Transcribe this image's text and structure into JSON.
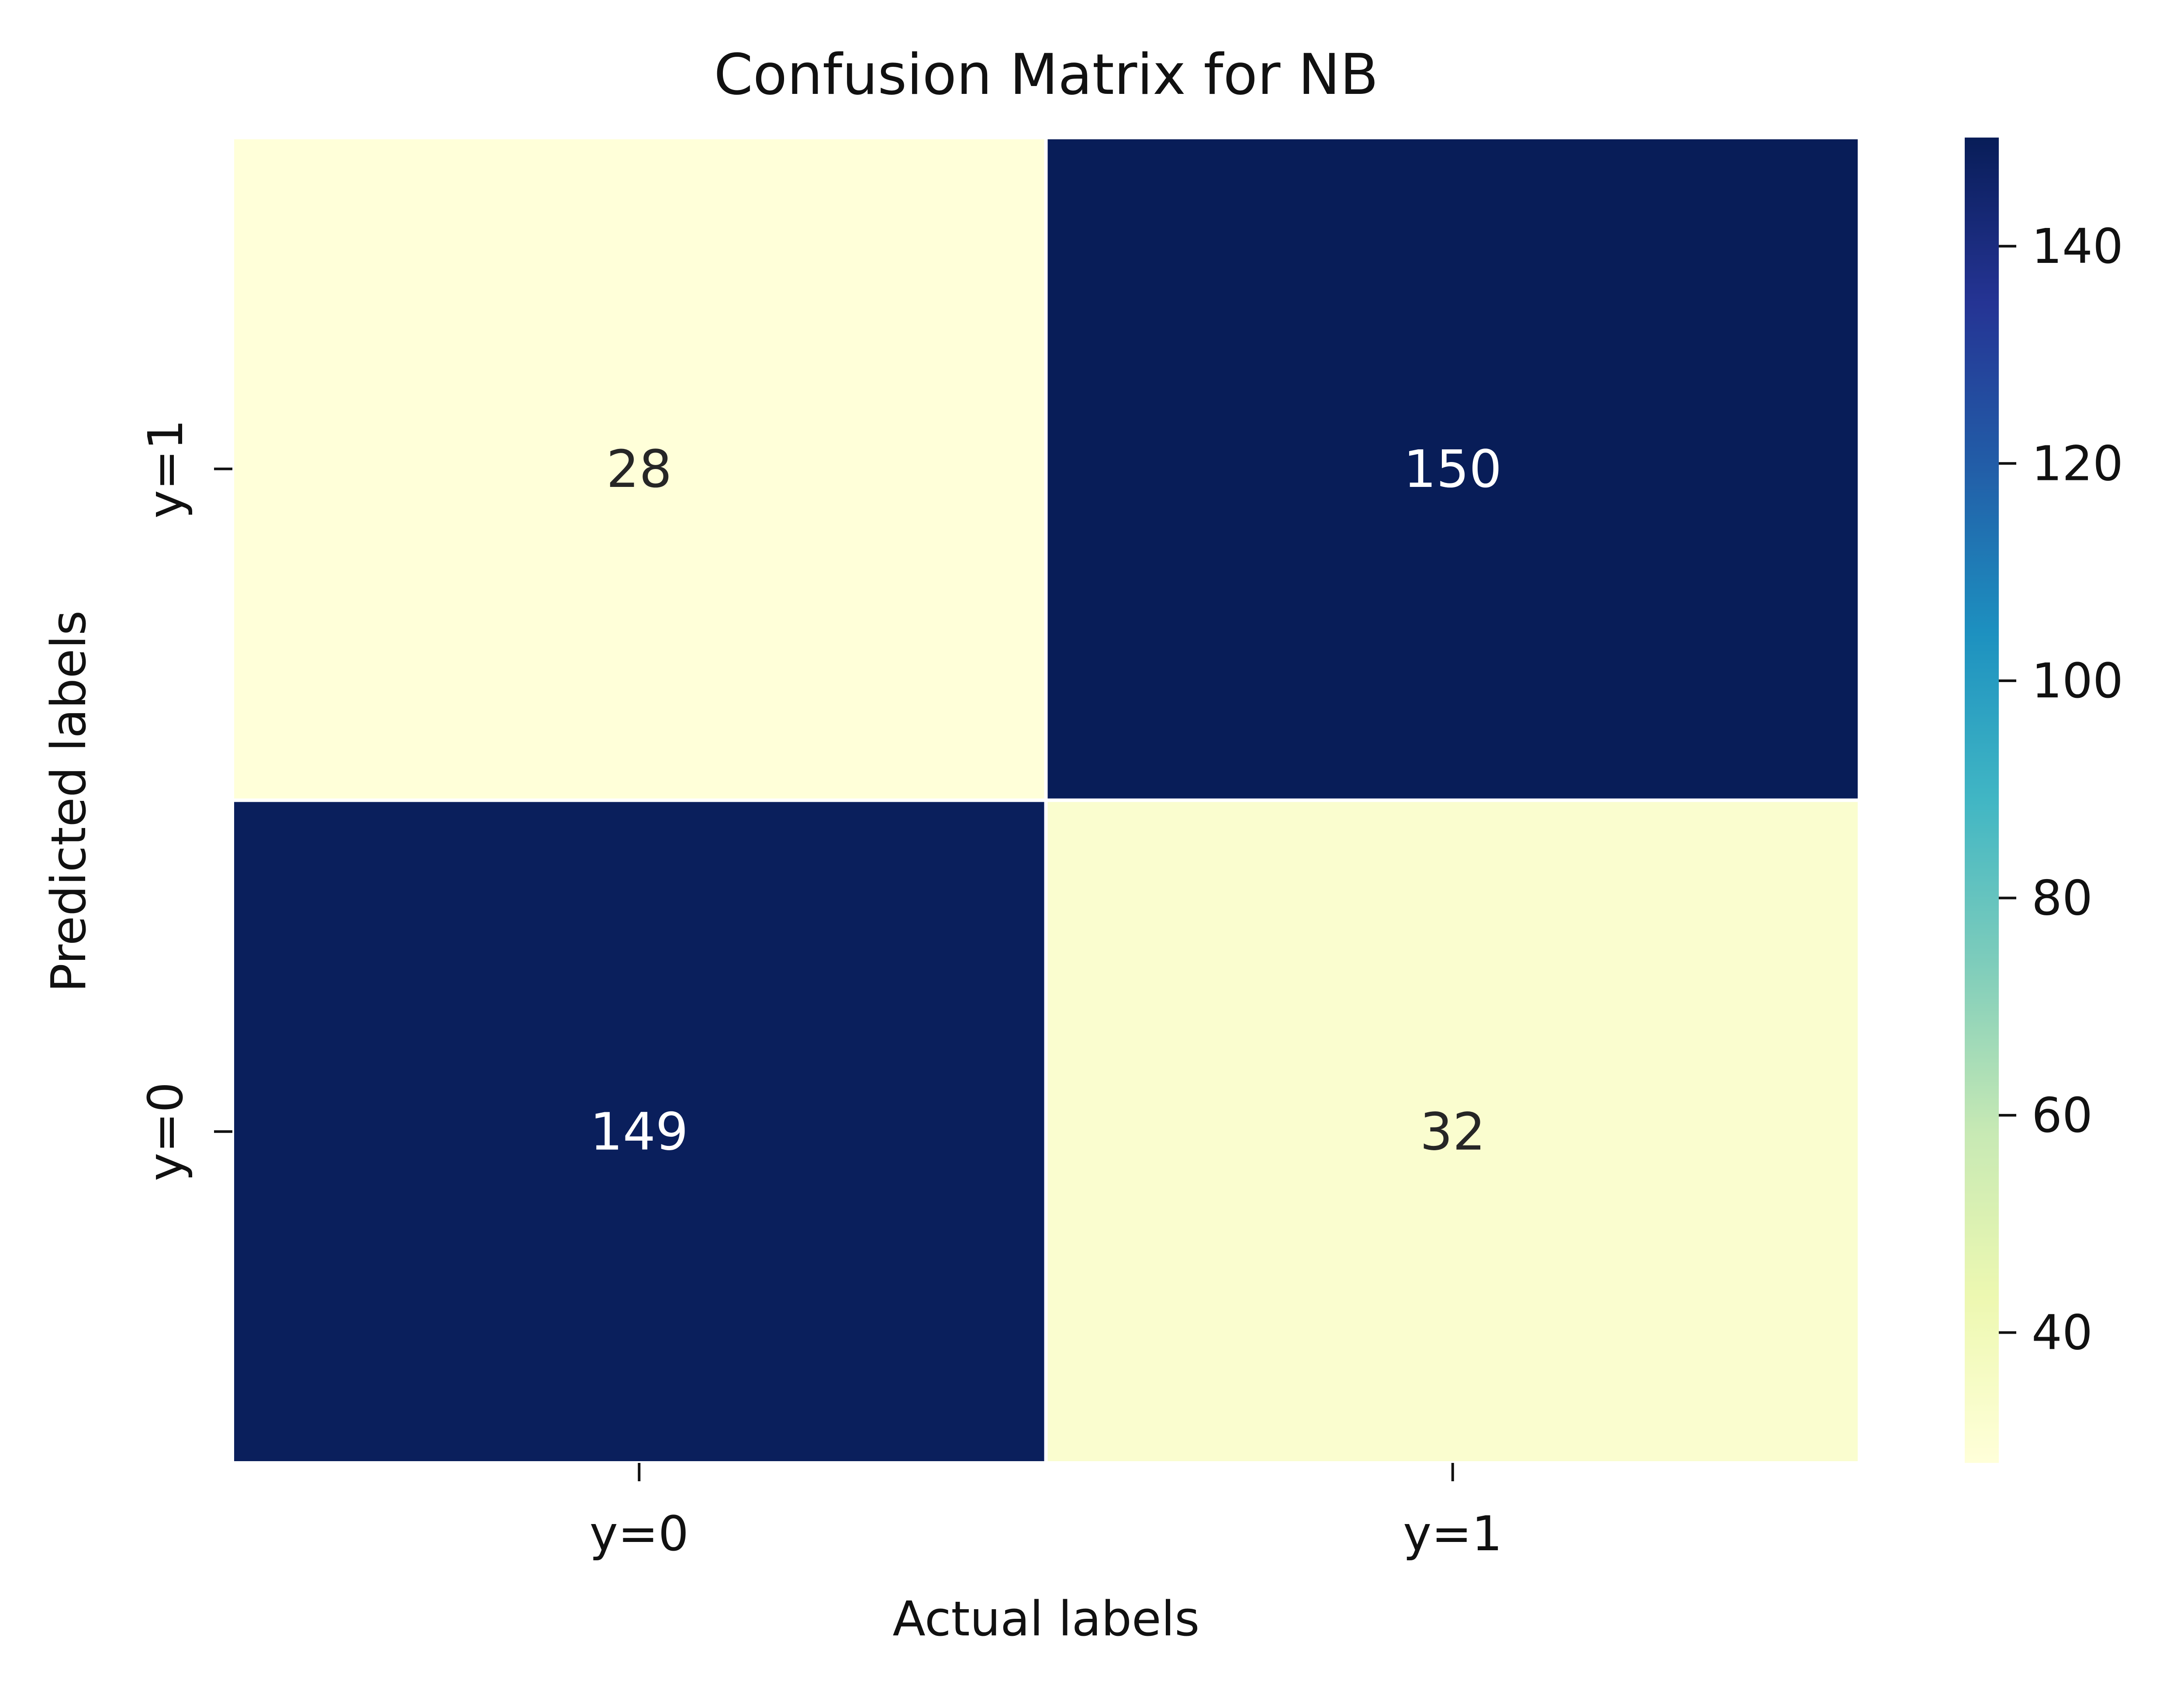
{
  "chart_data": {
    "type": "heatmap",
    "title": "Confusion Matrix for NB",
    "xlabel": "Actual labels",
    "ylabel": "Predicted labels",
    "x_categories": [
      "y=0",
      "y=1"
    ],
    "y_categories": [
      "y=1",
      "y=0"
    ],
    "values": [
      [
        28,
        150
      ],
      [
        149,
        32
      ]
    ],
    "colormap": "YlGnBu",
    "vmin": 28,
    "vmax": 150,
    "colorbar_ticks": [
      40,
      60,
      80,
      100,
      120,
      140
    ],
    "grid": false,
    "legend": "colorbar-right"
  }
}
